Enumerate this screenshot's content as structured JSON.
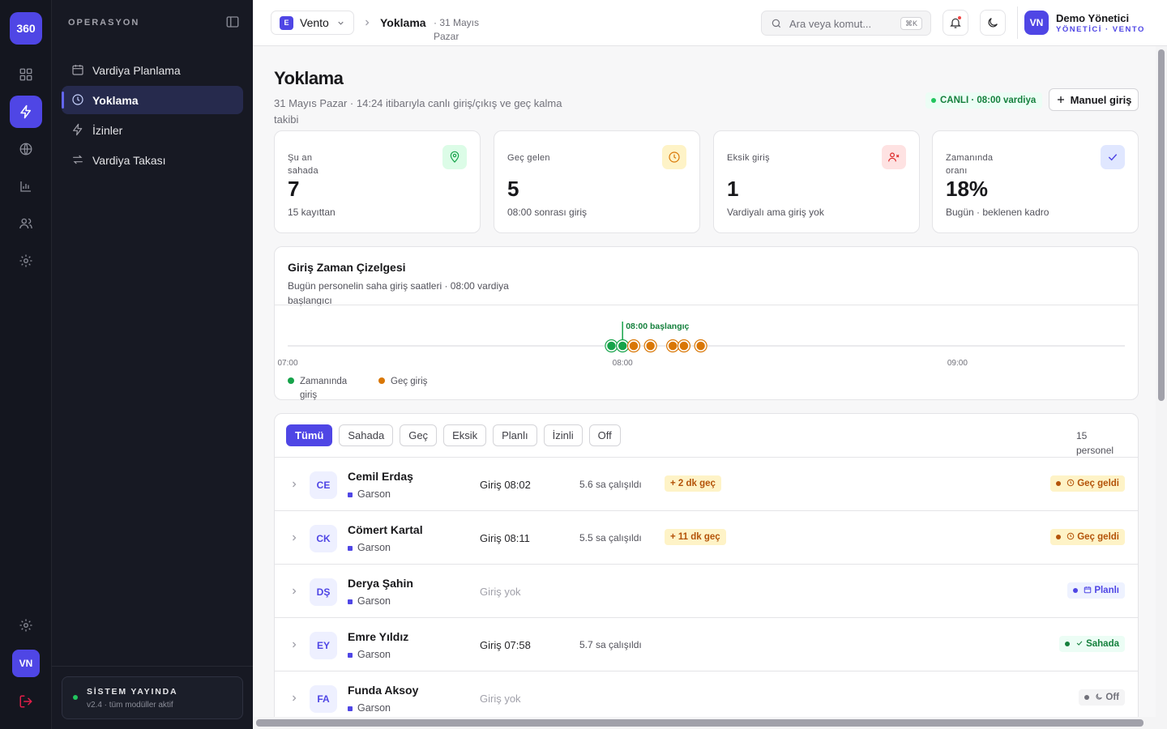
{
  "rail": {
    "logo": "360",
    "avatar": "VN",
    "items": [
      {
        "icon": "grid-icon"
      },
      {
        "icon": "bolt-icon",
        "active": true
      },
      {
        "icon": "globe-icon"
      },
      {
        "icon": "chart-icon"
      },
      {
        "icon": "users-icon"
      },
      {
        "icon": "settings-icon"
      }
    ]
  },
  "sidebar": {
    "section_title": "OPERASYON",
    "items": [
      {
        "label": "Vardiya Planlama",
        "icon": "calendar-icon"
      },
      {
        "label": "Yoklama",
        "icon": "clock-icon",
        "active": true
      },
      {
        "label": "İzinler",
        "icon": "bolt-icon"
      },
      {
        "label": "Vardiya Takası",
        "icon": "swap-icon"
      }
    ],
    "status": {
      "title": "SİSTEM YAYINDA",
      "subtitle": "v2.4 · tüm modüller aktif"
    }
  },
  "topbar": {
    "workspace_badge": "E",
    "workspace": "Vento",
    "crumb_title": "Yoklama",
    "crumb_date": "· 31 Mayıs Pazar",
    "search_placeholder": "Ara veya komut...",
    "search_kbd": "⌘K",
    "user_avatar": "VN",
    "user_name": "Demo Yönetici",
    "user_role": "YÖNETİCİ · VENTO"
  },
  "page": {
    "title": "Yoklama",
    "subtitle": "31 Mayıs Pazar · 14:24 itibarıyla canlı giriş/çıkış ve geç kalma takibi",
    "live_badge": "CANLI · 08:00 vardiya",
    "manual_button": "Manuel giriş"
  },
  "kpis": [
    {
      "label": "Şu an sahada",
      "value": "7",
      "sub": "15 kayıttan",
      "icon": "location-icon",
      "color": "#16a34a",
      "bg": "#dcfce7"
    },
    {
      "label": "Geç gelen",
      "value": "5",
      "sub": "08:00 sonrası giriş",
      "icon": "clock-icon",
      "color": "#d97706",
      "bg": "#fef3c7"
    },
    {
      "label": "Eksik giriş",
      "value": "1",
      "sub": "Vardiyalı ama giriş yok",
      "icon": "user-x-icon",
      "color": "#dc2626",
      "bg": "#fee2e2"
    },
    {
      "label": "Zamanında oranı",
      "value": "18%",
      "sub": "Bugün · beklenen kadro",
      "icon": "check-icon",
      "color": "#4f46e5",
      "bg": "#e0e7ff"
    }
  ],
  "timeline": {
    "title": "Giriş Zaman Çizelgesi",
    "subtitle": "Bugün personelin saha giriş saatleri · 08:00 vardiya başlangıcı",
    "start_label": "08:00 başlangıç",
    "axis_min": "07:00",
    "axis_max": "09:30",
    "ticks": [
      "07:00",
      "08:00",
      "09:00"
    ],
    "shift_start": "08:00",
    "points": [
      {
        "time": "07:58",
        "status": "on_time"
      },
      {
        "time": "08:00",
        "status": "on_time"
      },
      {
        "time": "08:02",
        "status": "late"
      },
      {
        "time": "08:05",
        "status": "late"
      },
      {
        "time": "08:09",
        "status": "late"
      },
      {
        "time": "08:11",
        "status": "late"
      },
      {
        "time": "08:14",
        "status": "late"
      }
    ],
    "legend": [
      {
        "label": "Zamanında giriş",
        "color": "#16a34a"
      },
      {
        "label": "Geç giriş",
        "color": "#d97706"
      }
    ],
    "colors": {
      "on_time": "#16a34a",
      "late": "#d97706"
    }
  },
  "list": {
    "filters": [
      "Tümü",
      "Sahada",
      "Geç",
      "Eksik",
      "Planlı",
      "İzinli",
      "Off"
    ],
    "active_filter": "Tümü",
    "count": "15 personel",
    "rows": [
      {
        "initials": "CE",
        "name": "Cemil Erdaş",
        "role": "Garson",
        "checkin": "Giriş 08:02",
        "worked": "5.6 sa çalışıldı",
        "late": "+ 2 dk geç",
        "status": "Geç geldi",
        "status_type": "late-s"
      },
      {
        "initials": "CK",
        "name": "Cömert Kartal",
        "role": "Garson",
        "checkin": "Giriş 08:11",
        "worked": "5.5 sa çalışıldı",
        "late": "+ 11 dk geç",
        "status": "Geç geldi",
        "status_type": "late-s"
      },
      {
        "initials": "DŞ",
        "name": "Derya Şahin",
        "role": "Garson",
        "checkin": "Giriş yok",
        "worked": "",
        "late": "",
        "status": "Planlı",
        "status_type": "plan"
      },
      {
        "initials": "EY",
        "name": "Emre Yıldız",
        "role": "Garson",
        "checkin": "Giriş 07:58",
        "worked": "5.7 sa çalışıldı",
        "late": "",
        "status": "Sahada",
        "status_type": "on"
      },
      {
        "initials": "FA",
        "name": "Funda Aksoy",
        "role": "Garson",
        "checkin": "Giriş yok",
        "worked": "",
        "late": "",
        "status": "Off",
        "status_type": "off"
      }
    ]
  }
}
